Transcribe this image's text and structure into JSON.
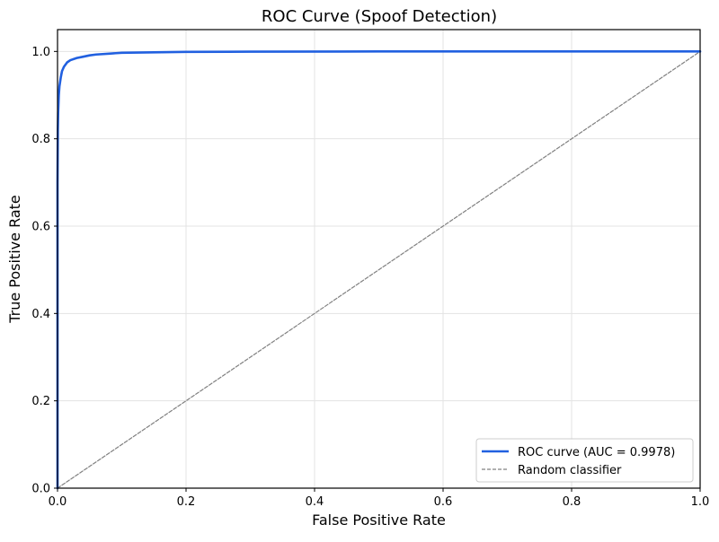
{
  "chart_data": {
    "type": "line",
    "title": "ROC Curve (Spoof Detection)",
    "xlabel": "False Positive Rate",
    "ylabel": "True Positive Rate",
    "xlim": [
      0.0,
      1.0
    ],
    "ylim": [
      0.0,
      1.05
    ],
    "xticks": [
      0.0,
      0.2,
      0.4,
      0.6,
      0.8,
      1.0
    ],
    "yticks": [
      0.0,
      0.2,
      0.4,
      0.6,
      0.8,
      1.0
    ],
    "xtick_labels": [
      "0.0",
      "0.2",
      "0.4",
      "0.6",
      "0.8",
      "1.0"
    ],
    "ytick_labels": [
      "0.0",
      "0.2",
      "0.4",
      "0.6",
      "0.8",
      "1.0"
    ],
    "grid": true,
    "legend_position": "bottom-right",
    "series": [
      {
        "name": "ROC curve (AUC = 0.9978)",
        "color": "#2160e0",
        "style": "solid",
        "x": [
          0.0,
          0.0,
          0.0005,
          0.001,
          0.002,
          0.003,
          0.005,
          0.007,
          0.01,
          0.015,
          0.02,
          0.03,
          0.04,
          0.05,
          0.06,
          0.08,
          0.1,
          0.15,
          0.2,
          0.3,
          0.5,
          0.7,
          1.0
        ],
        "y": [
          0.0,
          0.7,
          0.82,
          0.86,
          0.9,
          0.92,
          0.94,
          0.955,
          0.965,
          0.975,
          0.98,
          0.985,
          0.988,
          0.991,
          0.993,
          0.995,
          0.997,
          0.998,
          0.999,
          0.9995,
          1.0,
          1.0,
          1.0
        ]
      },
      {
        "name": "Random classifier",
        "color": "#808080",
        "style": "dashed",
        "x": [
          0.0,
          1.0
        ],
        "y": [
          0.0,
          1.0
        ]
      }
    ]
  }
}
